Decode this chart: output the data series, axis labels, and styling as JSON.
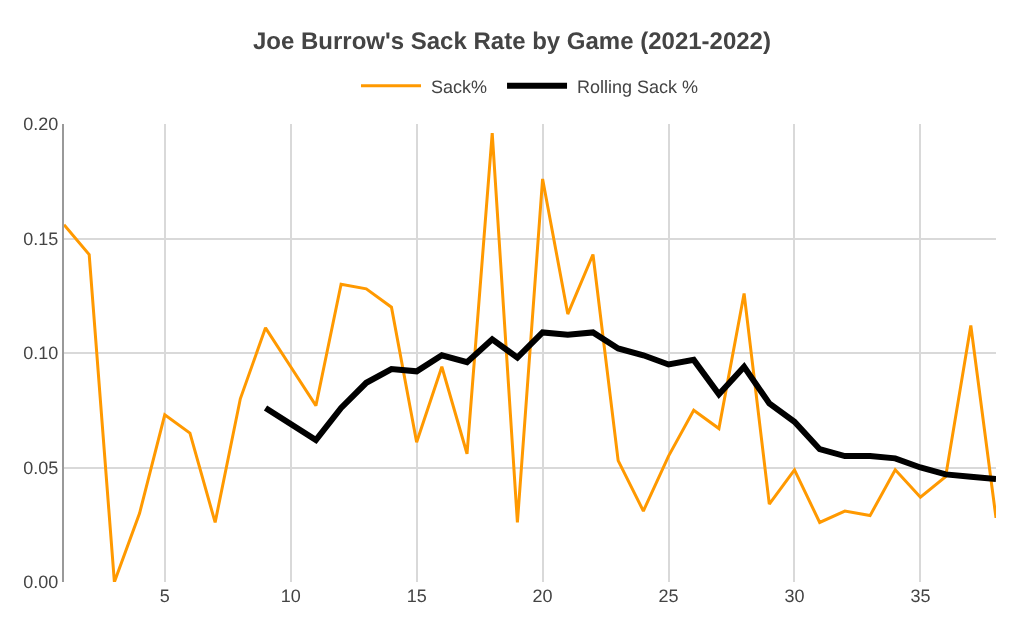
{
  "chart_data": {
    "type": "line",
    "title": "Joe Burrow's Sack Rate by Game (2021-2022)",
    "xlim": [
      1,
      38
    ],
    "xticks": [
      5,
      10,
      15,
      20,
      25,
      30,
      35
    ],
    "ylim": [
      0,
      0.2
    ],
    "yticks": [
      {
        "value": 0,
        "label": "0.00"
      },
      {
        "value": 0.05,
        "label": "0.05"
      },
      {
        "value": 0.1,
        "label": "0.10"
      },
      {
        "value": 0.15,
        "label": "0.15"
      },
      {
        "value": 0.2,
        "label": "0.20"
      }
    ],
    "grid": true,
    "legend": "top",
    "marker": "none",
    "series": [
      {
        "name": "Sack%",
        "color": "#ff9900",
        "x": [
          1,
          2,
          3,
          4,
          5,
          6,
          7,
          8,
          9,
          10,
          11,
          12,
          13,
          14,
          15,
          16,
          17,
          18,
          19,
          20,
          21,
          22,
          23,
          24,
          25,
          26,
          27,
          28,
          29,
          30,
          31,
          32,
          33,
          34,
          35,
          36,
          37,
          38
        ],
        "values": [
          0.156,
          0.143,
          0.0,
          0.03,
          0.073,
          0.065,
          0.026,
          0.08,
          0.111,
          0.094,
          0.077,
          0.13,
          0.128,
          0.12,
          0.061,
          0.094,
          0.056,
          0.196,
          0.026,
          0.176,
          0.117,
          0.143,
          0.053,
          0.031,
          0.055,
          0.075,
          0.067,
          0.126,
          0.034,
          0.049,
          0.026,
          0.031,
          0.029,
          0.049,
          0.037,
          0.046,
          0.112,
          0.028
        ]
      },
      {
        "name": "Rolling Sack %",
        "color": "#000000",
        "x": [
          9,
          10,
          11,
          12,
          13,
          14,
          15,
          16,
          17,
          18,
          19,
          20,
          21,
          22,
          23,
          24,
          25,
          26,
          27,
          28,
          29,
          30,
          31,
          32,
          33,
          34,
          35,
          36,
          37,
          38
        ],
        "values": [
          0.076,
          0.069,
          0.062,
          0.076,
          0.087,
          0.093,
          0.092,
          0.099,
          0.096,
          0.106,
          0.098,
          0.109,
          0.108,
          0.109,
          0.102,
          0.099,
          0.095,
          0.097,
          0.082,
          0.094,
          0.078,
          0.07,
          0.058,
          0.055,
          0.055,
          0.054,
          0.05,
          0.047,
          0.046,
          0.045
        ]
      }
    ]
  }
}
